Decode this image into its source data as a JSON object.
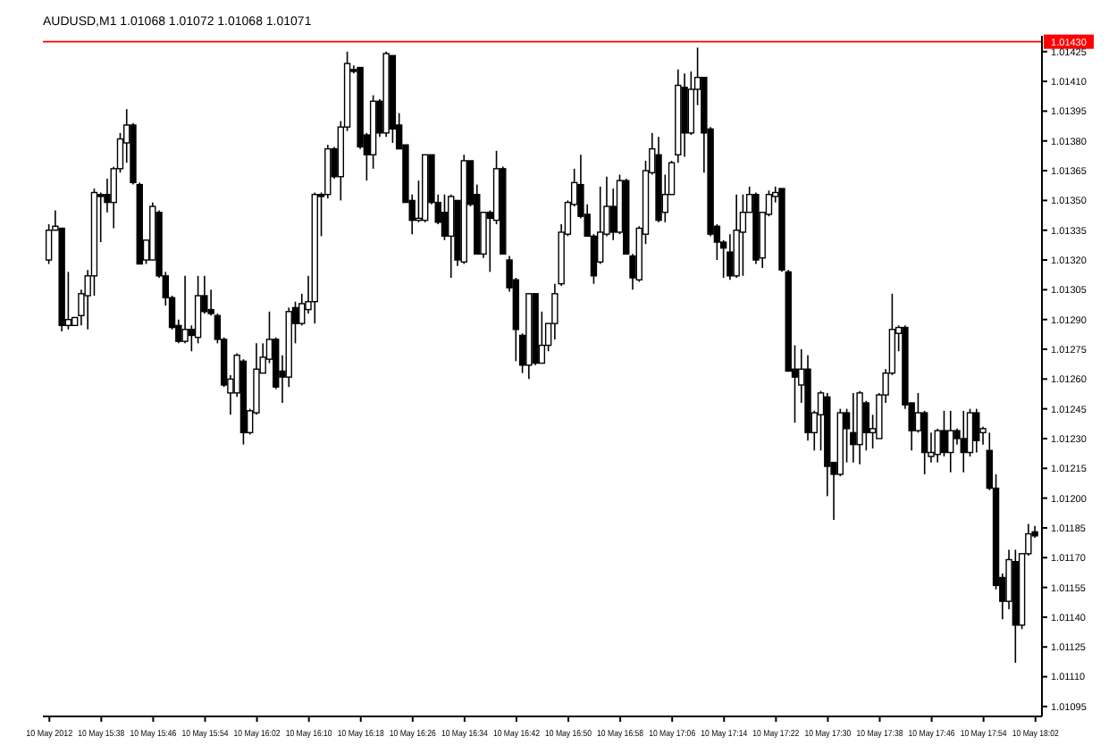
{
  "chart_data": {
    "type": "candlestick",
    "title": "AUDUSD,M1  1.01068 1.01072 1.01068 1.01071",
    "x": [
      "2012-05-10T15:30",
      "2012-05-10T15:31",
      "2012-05-10T15:32",
      "2012-05-10T15:33",
      "2012-05-10T15:34",
      "2012-05-10T15:35",
      "2012-05-10T15:36",
      "2012-05-10T15:37",
      "2012-05-10T15:38",
      "2012-05-10T15:39",
      "2012-05-10T15:40",
      "2012-05-10T15:41",
      "2012-05-10T15:42",
      "2012-05-10T15:43",
      "2012-05-10T15:44",
      "2012-05-10T15:45",
      "2012-05-10T15:46",
      "2012-05-10T15:47",
      "2012-05-10T15:48",
      "2012-05-10T15:49",
      "2012-05-10T15:50",
      "2012-05-10T15:51",
      "2012-05-10T15:52",
      "2012-05-10T15:53",
      "2012-05-10T15:54",
      "2012-05-10T15:55",
      "2012-05-10T15:56",
      "2012-05-10T15:57",
      "2012-05-10T15:58",
      "2012-05-10T15:59",
      "2012-05-10T16:00",
      "2012-05-10T16:01",
      "2012-05-10T16:02",
      "2012-05-10T16:03",
      "2012-05-10T16:04",
      "2012-05-10T16:05",
      "2012-05-10T16:06",
      "2012-05-10T16:07",
      "2012-05-10T16:08",
      "2012-05-10T16:09",
      "2012-05-10T16:10",
      "2012-05-10T16:11",
      "2012-05-10T16:12",
      "2012-05-10T16:13",
      "2012-05-10T16:14",
      "2012-05-10T16:15",
      "2012-05-10T16:16",
      "2012-05-10T16:17",
      "2012-05-10T16:18",
      "2012-05-10T16:19",
      "2012-05-10T16:20",
      "2012-05-10T16:21",
      "2012-05-10T16:22",
      "2012-05-10T16:23",
      "2012-05-10T16:24",
      "2012-05-10T16:25",
      "2012-05-10T16:26",
      "2012-05-10T16:27",
      "2012-05-10T16:28",
      "2012-05-10T16:29",
      "2012-05-10T16:30",
      "2012-05-10T16:31",
      "2012-05-10T16:32",
      "2012-05-10T16:33",
      "2012-05-10T16:34",
      "2012-05-10T16:35",
      "2012-05-10T16:36",
      "2012-05-10T16:37",
      "2012-05-10T16:38",
      "2012-05-10T16:39",
      "2012-05-10T16:40",
      "2012-05-10T16:41",
      "2012-05-10T16:42",
      "2012-05-10T16:43",
      "2012-05-10T16:44",
      "2012-05-10T16:45",
      "2012-05-10T16:46",
      "2012-05-10T16:47",
      "2012-05-10T16:48",
      "2012-05-10T16:49",
      "2012-05-10T16:50",
      "2012-05-10T16:51",
      "2012-05-10T16:52",
      "2012-05-10T16:53",
      "2012-05-10T16:54",
      "2012-05-10T16:55",
      "2012-05-10T16:56",
      "2012-05-10T16:57",
      "2012-05-10T16:58",
      "2012-05-10T16:59",
      "2012-05-10T17:00",
      "2012-05-10T17:01",
      "2012-05-10T17:02",
      "2012-05-10T17:03",
      "2012-05-10T17:04",
      "2012-05-10T17:05",
      "2012-05-10T17:06",
      "2012-05-10T17:07",
      "2012-05-10T17:08",
      "2012-05-10T17:09",
      "2012-05-10T17:10",
      "2012-05-10T17:11",
      "2012-05-10T17:12",
      "2012-05-10T17:13",
      "2012-05-10T17:14",
      "2012-05-10T17:15",
      "2012-05-10T17:16",
      "2012-05-10T17:17",
      "2012-05-10T17:18",
      "2012-05-10T17:19",
      "2012-05-10T17:20",
      "2012-05-10T17:21",
      "2012-05-10T17:22",
      "2012-05-10T17:23",
      "2012-05-10T17:24",
      "2012-05-10T17:25",
      "2012-05-10T17:26",
      "2012-05-10T17:27",
      "2012-05-10T17:28",
      "2012-05-10T17:29",
      "2012-05-10T17:30",
      "2012-05-10T17:31",
      "2012-05-10T17:32",
      "2012-05-10T17:33",
      "2012-05-10T17:34",
      "2012-05-10T17:35",
      "2012-05-10T17:36",
      "2012-05-10T17:37",
      "2012-05-10T17:38",
      "2012-05-10T17:39",
      "2012-05-10T17:40",
      "2012-05-10T17:41",
      "2012-05-10T17:42",
      "2012-05-10T17:43",
      "2012-05-10T17:44",
      "2012-05-10T17:45",
      "2012-05-10T17:46",
      "2012-05-10T17:47",
      "2012-05-10T17:48",
      "2012-05-10T17:49",
      "2012-05-10T17:50",
      "2012-05-10T17:51",
      "2012-05-10T17:52",
      "2012-05-10T17:53",
      "2012-05-10T17:54",
      "2012-05-10T17:55",
      "2012-05-10T17:56",
      "2012-05-10T17:57",
      "2012-05-10T17:58",
      "2012-05-10T17:59",
      "2012-05-10T18:00",
      "2012-05-10T18:01",
      "2012-05-10T18:02"
    ],
    "ohlc": [
      [
        1.0132,
        1.01338,
        1.01318,
        1.01335
      ],
      [
        1.01335,
        1.01345,
        1.01335,
        1.01337
      ],
      [
        1.01336,
        1.01336,
        1.01284,
        1.01287
      ],
      [
        1.01287,
        1.01314,
        1.01285,
        1.0129
      ],
      [
        1.01287,
        1.01291,
        1.01287,
        1.01291
      ],
      [
        1.01292,
        1.01305,
        1.01287,
        1.01303
      ],
      [
        1.01302,
        1.01315,
        1.01285,
        1.01312
      ],
      [
        1.01312,
        1.01356,
        1.01302,
        1.01354
      ],
      [
        1.01353,
        1.01354,
        1.01329,
        1.01352
      ],
      [
        1.01353,
        1.01361,
        1.01344,
        1.01349
      ],
      [
        1.01349,
        1.01367,
        1.01336,
        1.01366
      ],
      [
        1.01366,
        1.01384,
        1.01364,
        1.01381
      ],
      [
        1.01379,
        1.01396,
        1.01369,
        1.01388
      ],
      [
        1.01388,
        1.01389,
        1.01358,
        1.01359
      ],
      [
        1.01358,
        1.01359,
        1.01318,
        1.01318
      ],
      [
        1.0132,
        1.0133,
        1.01318,
        1.0133
      ],
      [
        1.0132,
        1.01349,
        1.0132,
        1.01347
      ],
      [
        1.01344,
        1.01345,
        1.01311,
        1.01312
      ],
      [
        1.01312,
        1.01314,
        1.01297,
        1.01301
      ],
      [
        1.01301,
        1.01302,
        1.01285,
        1.01286
      ],
      [
        1.01287,
        1.0129,
        1.01278,
        1.01279
      ],
      [
        1.01279,
        1.01312,
        1.01278,
        1.01285
      ],
      [
        1.01285,
        1.01287,
        1.01274,
        1.01282
      ],
      [
        1.01281,
        1.01312,
        1.01278,
        1.01302
      ],
      [
        1.01302,
        1.01312,
        1.01293,
        1.01294
      ],
      [
        1.01295,
        1.01305,
        1.01292,
        1.01293
      ],
      [
        1.01292,
        1.01293,
        1.01278,
        1.0128
      ],
      [
        1.0128,
        1.01281,
        1.01256,
        1.01257
      ],
      [
        1.01253,
        1.01262,
        1.01242,
        1.0126
      ],
      [
        1.01253,
        1.01273,
        1.01251,
        1.01272
      ],
      [
        1.01269,
        1.0127,
        1.01227,
        1.01233
      ],
      [
        1.01233,
        1.01245,
        1.01232,
        1.01244
      ],
      [
        1.01243,
        1.01278,
        1.01242,
        1.01265
      ],
      [
        1.01263,
        1.01278,
        1.01263,
        1.01271
      ],
      [
        1.0127,
        1.01294,
        1.01268,
        1.0128
      ],
      [
        1.0128,
        1.01281,
        1.01255,
        1.01256
      ],
      [
        1.01264,
        1.01272,
        1.01248,
        1.01261
      ],
      [
        1.01261,
        1.01296,
        1.01256,
        1.01294
      ],
      [
        1.01296,
        1.01299,
        1.01278,
        1.01288
      ],
      [
        1.01288,
        1.01303,
        1.01287,
        1.01298
      ],
      [
        1.01295,
        1.01312,
        1.01293,
        1.01299
      ],
      [
        1.01299,
        1.01354,
        1.01288,
        1.01353
      ],
      [
        1.01353,
        1.01354,
        1.01332,
        1.01352
      ],
      [
        1.01353,
        1.01378,
        1.01351,
        1.01376
      ],
      [
        1.01376,
        1.01377,
        1.01361,
        1.01362
      ],
      [
        1.01362,
        1.0139,
        1.0135,
        1.01387
      ],
      [
        1.01387,
        1.01425,
        1.01385,
        1.01419
      ],
      [
        1.01416,
        1.01418,
        1.01414,
        1.01415
      ],
      [
        1.01417,
        1.01417,
        1.01376,
        1.01377
      ],
      [
        1.01383,
        1.01384,
        1.0136,
        1.01373
      ],
      [
        1.01373,
        1.01403,
        1.01366,
        1.014
      ],
      [
        1.014,
        1.01401,
        1.01382,
        1.01384
      ],
      [
        1.01384,
        1.01425,
        1.01382,
        1.01424
      ],
      [
        1.01423,
        1.01423,
        1.01379,
        1.01386
      ],
      [
        1.01388,
        1.01394,
        1.01376,
        1.01376
      ],
      [
        1.01378,
        1.01378,
        1.01349,
        1.01349
      ],
      [
        1.0135,
        1.01353,
        1.01333,
        1.0134
      ],
      [
        1.0134,
        1.0136,
        1.01339,
        1.01341
      ],
      [
        1.0134,
        1.01373,
        1.01339,
        1.01373
      ],
      [
        1.01373,
        1.01373,
        1.01348,
        1.01349
      ],
      [
        1.01349,
        1.01353,
        1.01338,
        1.01339
      ],
      [
        1.01344,
        1.01353,
        1.0133,
        1.01332
      ],
      [
        1.01332,
        1.01353,
        1.01311,
        1.01352
      ],
      [
        1.0135,
        1.0135,
        1.01317,
        1.0132
      ],
      [
        1.01319,
        1.01373,
        1.01318,
        1.0137
      ],
      [
        1.0137,
        1.0137,
        1.01347,
        1.01348
      ],
      [
        1.01353,
        1.01358,
        1.01323,
        1.01323
      ],
      [
        1.01323,
        1.01344,
        1.01321,
        1.01344
      ],
      [
        1.01344,
        1.01345,
        1.01314,
        1.01341
      ],
      [
        1.0134,
        1.01375,
        1.01338,
        1.01366
      ],
      [
        1.01366,
        1.01367,
        1.01323,
        1.01323
      ],
      [
        1.0132,
        1.01322,
        1.01304,
        1.01306
      ],
      [
        1.0131,
        1.01311,
        1.01269,
        1.01285
      ],
      [
        1.01282,
        1.01283,
        1.01263,
        1.01267
      ],
      [
        1.01267,
        1.01303,
        1.0126,
        1.01303
      ],
      [
        1.01303,
        1.01303,
        1.01267,
        1.01268
      ],
      [
        1.01268,
        1.01294,
        1.01268,
        1.01277
      ],
      [
        1.01277,
        1.01288,
        1.01274,
        1.01288
      ],
      [
        1.01288,
        1.01308,
        1.0128,
        1.01303
      ],
      [
        1.01308,
        1.01338,
        1.01307,
        1.01334
      ],
      [
        1.01333,
        1.0135,
        1.01332,
        1.01349
      ],
      [
        1.01348,
        1.01366,
        1.01347,
        1.01359
      ],
      [
        1.01358,
        1.01373,
        1.01341,
        1.01342
      ],
      [
        1.01343,
        1.01348,
        1.01332,
        1.01332
      ],
      [
        1.01332,
        1.01333,
        1.01308,
        1.01312
      ],
      [
        1.01319,
        1.01357,
        1.01318,
        1.01334
      ],
      [
        1.01333,
        1.01362,
        1.01332,
        1.01347
      ],
      [
        1.01347,
        1.01356,
        1.0133,
        1.01334
      ],
      [
        1.01334,
        1.01363,
        1.01333,
        1.0136
      ],
      [
        1.0136,
        1.01361,
        1.01323,
        1.01323
      ],
      [
        1.01322,
        1.01323,
        1.01305,
        1.01311
      ],
      [
        1.0131,
        1.01337,
        1.01309,
        1.01336
      ],
      [
        1.01333,
        1.0137,
        1.01328,
        1.01365
      ],
      [
        1.01364,
        1.01384,
        1.01363,
        1.01376
      ],
      [
        1.01373,
        1.01382,
        1.01339,
        1.0134
      ],
      [
        1.01344,
        1.01363,
        1.01339,
        1.01353
      ],
      [
        1.01353,
        1.0137,
        1.01353,
        1.01369
      ],
      [
        1.01373,
        1.01416,
        1.01369,
        1.01408
      ],
      [
        1.01407,
        1.01414,
        1.01372,
        1.01384
      ],
      [
        1.01384,
        1.01415,
        1.01383,
        1.01406
      ],
      [
        1.01406,
        1.01427,
        1.01398,
        1.01412
      ],
      [
        1.01412,
        1.01412,
        1.01364,
        1.01384
      ],
      [
        1.01386,
        1.01387,
        1.01332,
        1.01333
      ],
      [
        1.01337,
        1.01338,
        1.0132,
        1.01329
      ],
      [
        1.01329,
        1.0133,
        1.01311,
        1.01326
      ],
      [
        1.01324,
        1.01333,
        1.0131,
        1.01312
      ],
      [
        1.01312,
        1.01353,
        1.01311,
        1.01335
      ],
      [
        1.01334,
        1.01353,
        1.01312,
        1.01344
      ],
      [
        1.01344,
        1.01357,
        1.01344,
        1.01353
      ],
      [
        1.01353,
        1.01354,
        1.01318,
        1.0132
      ],
      [
        1.01321,
        1.01344,
        1.01316,
        1.01344
      ],
      [
        1.01343,
        1.01355,
        1.01342,
        1.01353
      ],
      [
        1.01352,
        1.01357,
        1.01349,
        1.01354
      ],
      [
        1.01356,
        1.01356,
        1.01314,
        1.01315
      ],
      [
        1.01314,
        1.01315,
        1.01264,
        1.01264
      ],
      [
        1.01265,
        1.01277,
        1.01238,
        1.01261
      ],
      [
        1.01257,
        1.01275,
        1.01248,
        1.01265
      ],
      [
        1.01265,
        1.01272,
        1.01229,
        1.01233
      ],
      [
        1.01233,
        1.01244,
        1.01224,
        1.01243
      ],
      [
        1.01242,
        1.01254,
        1.01224,
        1.01253
      ],
      [
        1.01251,
        1.01253,
        1.01201,
        1.01216
      ],
      [
        1.01218,
        1.01218,
        1.01189,
        1.01212
      ],
      [
        1.01212,
        1.01245,
        1.01211,
        1.01243
      ],
      [
        1.01243,
        1.01245,
        1.01218,
        1.01235
      ],
      [
        1.01233,
        1.01253,
        1.01218,
        1.01227
      ],
      [
        1.01227,
        1.01254,
        1.01217,
        1.01253
      ],
      [
        1.01248,
        1.01249,
        1.01224,
        1.01233
      ],
      [
        1.01233,
        1.01242,
        1.01225,
        1.01235
      ],
      [
        1.0123,
        1.01253,
        1.0123,
        1.01252
      ],
      [
        1.01252,
        1.01265,
        1.01248,
        1.01263
      ],
      [
        1.01263,
        1.01303,
        1.01262,
        1.01285
      ],
      [
        1.01283,
        1.01287,
        1.01274,
        1.01286
      ],
      [
        1.01286,
        1.01287,
        1.01245,
        1.01247
      ],
      [
        1.01248,
        1.01248,
        1.01224,
        1.01234
      ],
      [
        1.01234,
        1.01253,
        1.01233,
        1.01243
      ],
      [
        1.01243,
        1.01244,
        1.01212,
        1.01223
      ],
      [
        1.01221,
        1.01233,
        1.01218,
        1.01223
      ],
      [
        1.01222,
        1.01235,
        1.01218,
        1.01234
      ],
      [
        1.01234,
        1.01244,
        1.01221,
        1.01223
      ],
      [
        1.01223,
        1.01244,
        1.01213,
        1.01234
      ],
      [
        1.01234,
        1.01235,
        1.01227,
        1.0123
      ],
      [
        1.0123,
        1.01244,
        1.01213,
        1.01223
      ],
      [
        1.01223,
        1.01245,
        1.01221,
        1.01243
      ],
      [
        1.01243,
        1.01245,
        1.01223,
        1.01229
      ],
      [
        1.01233,
        1.01236,
        1.01227,
        1.01235
      ],
      [
        1.01224,
        1.01233,
        1.01204,
        1.01205
      ],
      [
        1.01205,
        1.01212,
        1.01154,
        1.01156
      ],
      [
        1.0116,
        1.01162,
        1.01139,
        1.01148
      ],
      [
        1.01148,
        1.01174,
        1.01144,
        1.01169
      ],
      [
        1.01168,
        1.01174,
        1.01117,
        1.01136
      ],
      [
        1.01136,
        1.01172,
        1.01134,
        1.01172
      ],
      [
        1.01172,
        1.01187,
        1.01171,
        1.01182
      ],
      [
        1.01183,
        1.01186,
        1.0118,
        1.01181
      ]
    ],
    "xlim": [
      "2012-05-10T15:29",
      "2012-05-10T18:03"
    ],
    "ylim": [
      1.0109,
      1.01433
    ],
    "yticks": [
      1.01425,
      {
        "value": 1.0141,
        "label": "1.01410"
      },
      1.01395,
      {
        "value": 1.0138,
        "label": "1.01380"
      },
      1.01365,
      {
        "value": 1.0135,
        "label": "1.01350"
      },
      1.01335,
      {
        "value": 1.0132,
        "label": "1.01320"
      },
      1.01305,
      {
        "value": 1.0129,
        "label": "1.01290"
      },
      1.01275,
      {
        "value": 1.0126,
        "label": "1.01260"
      },
      1.01245,
      {
        "value": 1.0123,
        "label": "1.01230"
      },
      1.01215,
      {
        "value": 1.012,
        "label": "1.01200"
      },
      1.01185,
      {
        "value": 1.0117,
        "label": "1.01170"
      },
      1.01155,
      {
        "value": 1.0114,
        "label": "1.01140"
      },
      1.01125,
      {
        "value": 1.0111,
        "label": "1.01110"
      },
      1.01095
    ],
    "xticks": [
      {
        "value": "2012-05-10T15:30",
        "label": "10 May 2012"
      },
      {
        "value": "2012-05-10T15:38",
        "label": "10 May 15:38"
      },
      {
        "value": "2012-05-10T15:46",
        "label": "10 May 15:46"
      },
      {
        "value": "2012-05-10T15:54",
        "label": "10 May 15:54"
      },
      {
        "value": "2012-05-10T16:02",
        "label": "10 May 16:02"
      },
      {
        "value": "2012-05-10T16:10",
        "label": "10 May 16:10"
      },
      {
        "value": "2012-05-10T16:18",
        "label": "10 May 16:18"
      },
      {
        "value": "2012-05-10T16:26",
        "label": "10 May 16:26"
      },
      {
        "value": "2012-05-10T16:34",
        "label": "10 May 16:34"
      },
      {
        "value": "2012-05-10T16:42",
        "label": "10 May 16:42"
      },
      {
        "value": "2012-05-10T16:50",
        "label": "10 May 16:50"
      },
      {
        "value": "2012-05-10T16:58",
        "label": "10 May 16:58"
      },
      {
        "value": "2012-05-10T17:06",
        "label": "10 May 17:06"
      },
      {
        "value": "2012-05-10T17:14",
        "label": "10 May 17:14"
      },
      {
        "value": "2012-05-10T17:22",
        "label": "10 May 17:22"
      },
      {
        "value": "2012-05-10T17:30",
        "label": "10 May 17:30"
      },
      {
        "value": "2012-05-10T17:38",
        "label": "10 May 17:38"
      },
      {
        "value": "2012-05-10T17:46",
        "label": "10 May 17:46"
      },
      {
        "value": "2012-05-10T17:54",
        "label": "10 May 17:54"
      },
      {
        "value": "2012-05-10T18:02",
        "label": "10 May 18:02"
      }
    ],
    "ref_lines": [
      {
        "axis": "y",
        "value": 1.0143,
        "label": "1.01430",
        "color": "#ff0000"
      }
    ]
  }
}
